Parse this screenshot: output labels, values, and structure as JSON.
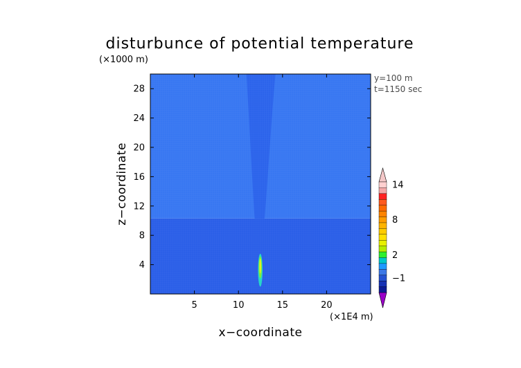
{
  "chart_data": {
    "type": "heatmap",
    "title": "disturbunce of potential temperature",
    "xlabel": "x−coordinate",
    "ylabel": "z−coordinate",
    "x_unit": "(×1E4 m)",
    "y_unit": "(×1000 m)",
    "xlim": [
      0,
      25
    ],
    "ylim": [
      0,
      30
    ],
    "x_ticks": [
      5,
      10,
      15,
      20
    ],
    "y_ticks": [
      4,
      8,
      12,
      16,
      20,
      24,
      28
    ],
    "annotations": [
      "y=100 m",
      "t=1150 sec"
    ],
    "grid": false,
    "colorbar": {
      "position": "right",
      "tick_labels": [
        {
          "value": 14,
          "label": "14"
        },
        {
          "value": 8,
          "label": "8"
        },
        {
          "value": 2,
          "label": "2"
        },
        {
          "value": -1,
          "label": "−1"
        }
      ],
      "levels": [
        {
          "min": 15,
          "color": "#f4c8c8"
        },
        {
          "min": 14,
          "color": "#ffd0d0"
        },
        {
          "min": 13,
          "color": "#f4a8a8"
        },
        {
          "min": 12,
          "color": "#ff2222"
        },
        {
          "min": 11,
          "color": "#ff5a1e"
        },
        {
          "min": 10,
          "color": "#ff6a00"
        },
        {
          "min": 9,
          "color": "#ff8400"
        },
        {
          "min": 8,
          "color": "#ff9d00"
        },
        {
          "min": 7,
          "color": "#ffb400"
        },
        {
          "min": 6,
          "color": "#ffcc00"
        },
        {
          "min": 5,
          "color": "#ffe000"
        },
        {
          "min": 4,
          "color": "#e8f000"
        },
        {
          "min": 3,
          "color": "#b4ec00"
        },
        {
          "min": 2,
          "color": "#2ef02e"
        },
        {
          "min": 1,
          "color": "#00c8c8"
        },
        {
          "min": 0,
          "color": "#1e9aff"
        },
        {
          "min": -0.5,
          "color": "#3c78e6"
        },
        {
          "min": -1,
          "color": "#2452d2"
        },
        {
          "min": -1.5,
          "color": "#1632b4"
        },
        {
          "min": -2,
          "color": "#0c1c96"
        },
        {
          "min": -3,
          "color": "#9a00c8"
        }
      ]
    },
    "regions": [
      {
        "name": "lower-layer",
        "x": [
          0,
          25
        ],
        "z": [
          0,
          10.3
        ],
        "value": -0.4,
        "color": "#2b5fe8"
      },
      {
        "name": "upper-layer",
        "x": [
          0,
          25
        ],
        "z": [
          10.3,
          30
        ],
        "value": -0.2,
        "color": "#3877f2"
      },
      {
        "name": "plume",
        "x_top": [
          10.9,
          14.2
        ],
        "x_bottom": [
          12.0,
          12.8
        ],
        "z": [
          10.3,
          30
        ],
        "value": -0.3,
        "color": "#2c64eb"
      },
      {
        "name": "hot-column",
        "x": [
          12.3,
          12.65
        ],
        "z": [
          1.0,
          5.5
        ],
        "peak_value": 4,
        "colors": [
          "#25d6c8",
          "#7cec3a",
          "#e6f020"
        ]
      }
    ]
  }
}
